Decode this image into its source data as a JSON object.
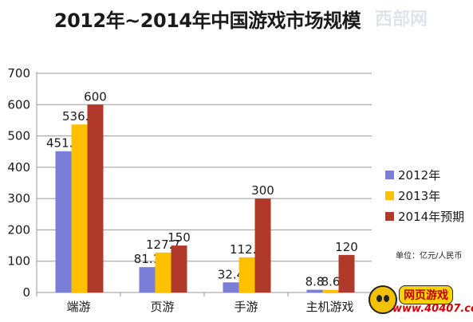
{
  "chart_data": {
    "type": "bar",
    "title": "2012年~2014年中国游戏市场规模",
    "categories": [
      "端游",
      "页游",
      "手游",
      "主机游戏"
    ],
    "series": [
      {
        "name": "2012年",
        "color": "#7b7ed9",
        "values": [
          451.2,
          81.1,
          32.4,
          8.8
        ],
        "labels": [
          "451.2",
          "81.1",
          "32.4",
          "8.8"
        ]
      },
      {
        "name": "2013年",
        "color": "#ffc000",
        "values": [
          536.6,
          127.7,
          112.4,
          8.6
        ],
        "labels": [
          "536.6",
          "127.7",
          "112.4",
          "8.6"
        ]
      },
      {
        "name": "2014年预期",
        "color": "#b0392a",
        "values": [
          600,
          150,
          300,
          120
        ],
        "labels": [
          "600",
          "150",
          "300",
          "120"
        ]
      }
    ],
    "ylim": [
      0,
      700
    ],
    "yticks": [
      0,
      100,
      200,
      300,
      400,
      500,
      600,
      700
    ],
    "grid": true,
    "legend_position": "right",
    "unit_note": "单位：亿元/人民币"
  },
  "watermark": "西部网",
  "logo": {
    "name": "网页游戏",
    "url": "www.40407.com"
  }
}
